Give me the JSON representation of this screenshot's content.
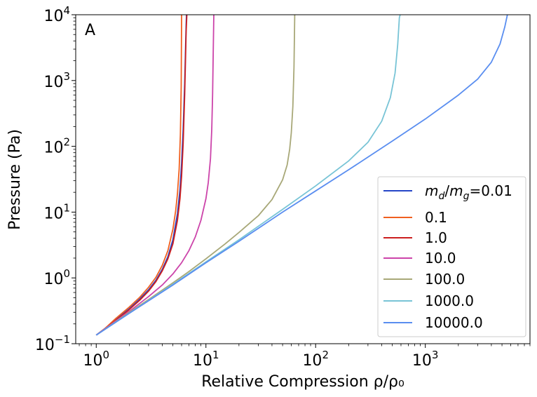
{
  "chart_data": {
    "type": "line",
    "panel_label": "A",
    "xlabel": "Relative Compression ρ/ρ₀",
    "ylabel": "Pressure (Pa)",
    "xscale": "log",
    "yscale": "log",
    "xlim": [
      0.65,
      9000
    ],
    "ylim": [
      0.1,
      10000
    ],
    "grid": false,
    "legend_position": "lower-right",
    "x_tick_labels": [
      {
        "base": "10",
        "exp": "0",
        "value": 1
      },
      {
        "base": "10",
        "exp": "1",
        "value": 10
      },
      {
        "base": "10",
        "exp": "2",
        "value": 100
      },
      {
        "base": "10",
        "exp": "3",
        "value": 1000
      }
    ],
    "y_tick_labels": [
      {
        "base": "10",
        "exp": "−1",
        "value": 0.1
      },
      {
        "base": "10",
        "exp": "0",
        "value": 1
      },
      {
        "base": "10",
        "exp": "1",
        "value": 10
      },
      {
        "base": "10",
        "exp": "2",
        "value": 100
      },
      {
        "base": "10",
        "exp": "3",
        "value": 1000
      },
      {
        "base": "10",
        "exp": "4",
        "value": 10000
      }
    ],
    "legend_first_label": {
      "m1": "m",
      "s1": "d",
      "slash": "/",
      "m2": "m",
      "s2": "g",
      "eq": "=0.01"
    },
    "series": [
      {
        "name": "m_d/m_g=0.01",
        "color": "#2546c8",
        "x": [
          1.0,
          1.2,
          1.5,
          2.0,
          2.5,
          3.0,
          3.5,
          4.0,
          4.5,
          5.0,
          5.5,
          5.8,
          6.0,
          6.2,
          6.4,
          6.5,
          6.6,
          6.65
        ],
        "y": [
          0.135,
          0.17,
          0.23,
          0.34,
          0.48,
          0.66,
          0.92,
          1.35,
          2.1,
          3.8,
          9.5,
          22,
          55,
          180,
          900,
          2500,
          7000,
          10000
        ]
      },
      {
        "name": "0.1",
        "color": "#f06020",
        "x": [
          1.0,
          1.2,
          1.5,
          2.0,
          2.5,
          3.0,
          3.5,
          4.0,
          4.5,
          5.0,
          5.3,
          5.5,
          5.7,
          5.85,
          5.95,
          6.0
        ],
        "y": [
          0.135,
          0.17,
          0.24,
          0.36,
          0.51,
          0.72,
          1.02,
          1.55,
          2.6,
          5.5,
          10.5,
          19,
          45,
          150,
          800,
          10000
        ]
      },
      {
        "name": "1.0",
        "color": "#cc1f1f",
        "x": [
          1.0,
          1.2,
          1.5,
          2.0,
          2.5,
          3.0,
          3.5,
          4.0,
          4.5,
          5.0,
          5.5,
          5.8,
          6.0,
          6.2,
          6.4,
          6.5,
          6.6,
          6.7
        ],
        "y": [
          0.135,
          0.168,
          0.225,
          0.33,
          0.46,
          0.63,
          0.88,
          1.28,
          1.95,
          3.3,
          7.5,
          16,
          35,
          110,
          600,
          1800,
          5500,
          10000
        ]
      },
      {
        "name": "10.0",
        "color": "#cc44aa",
        "x": [
          1.0,
          1.5,
          2.0,
          3.0,
          4.0,
          5.0,
          6.0,
          7.0,
          8.0,
          9.0,
          10.0,
          10.5,
          11.0,
          11.3,
          11.5,
          11.65,
          11.8
        ],
        "y": [
          0.135,
          0.22,
          0.31,
          0.52,
          0.78,
          1.15,
          1.7,
          2.6,
          4.2,
          7.5,
          16,
          28,
          65,
          180,
          600,
          2500,
          10000
        ]
      },
      {
        "name": "100.0",
        "color": "#a8a878",
        "x": [
          1.0,
          2.0,
          3.0,
          5.0,
          7.0,
          10.0,
          15.0,
          20.0,
          30.0,
          40.0,
          50.0,
          55.0,
          58.0,
          60.0,
          62.0,
          63.5,
          64.5
        ],
        "y": [
          0.135,
          0.3,
          0.47,
          0.84,
          1.25,
          1.95,
          3.3,
          4.9,
          8.8,
          15.5,
          31,
          52,
          90,
          160,
          400,
          1600,
          10000
        ]
      },
      {
        "name": "1000.0",
        "color": "#78c4d6",
        "x": [
          1.0,
          2.0,
          5.0,
          10.0,
          20.0,
          50.0,
          100.0,
          200.0,
          300.0,
          400.0,
          480.0,
          530.0,
          560.0,
          580.0,
          590.0
        ],
        "y": [
          0.135,
          0.29,
          0.8,
          1.75,
          3.8,
          11,
          25,
          60,
          115,
          240,
          550,
          1300,
          3500,
          9000,
          10000
        ]
      },
      {
        "name": "10000.0",
        "color": "#5a8ef0",
        "x": [
          1.0,
          2.0,
          5.0,
          10.0,
          20.0,
          50.0,
          100.0,
          200.0,
          500.0,
          1000.0,
          2000.0,
          3000.0,
          4000.0,
          4800.0,
          5300.0,
          5600.0
        ],
        "y": [
          0.135,
          0.29,
          0.78,
          1.7,
          3.6,
          10,
          21,
          44,
          120,
          260,
          600,
          1050,
          1900,
          3600,
          6500,
          10000
        ]
      }
    ]
  }
}
